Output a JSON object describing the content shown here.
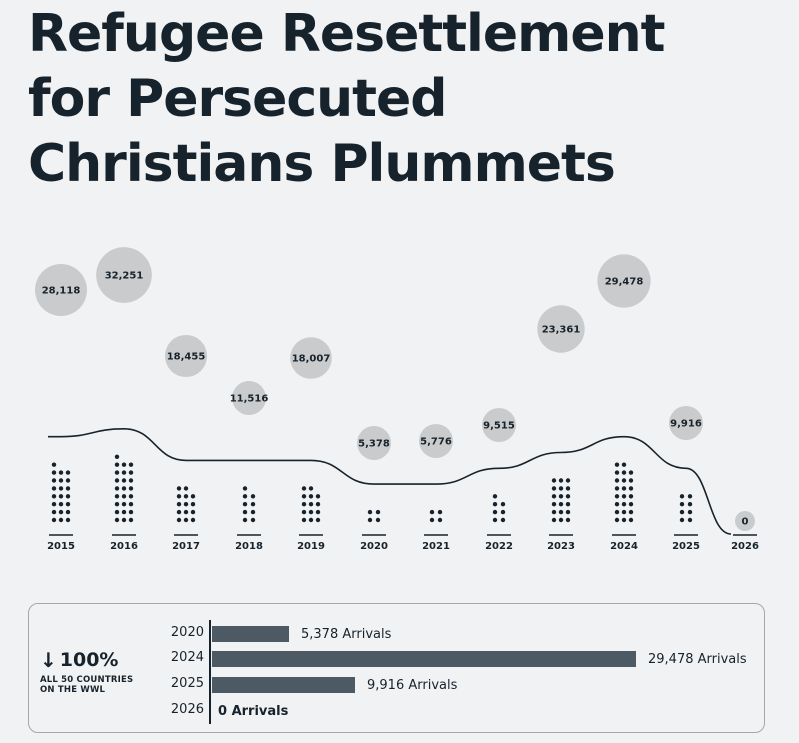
{
  "title": [
    "Refugee Resettlement",
    "for Persecuted",
    "Christians Plummets"
  ],
  "chart_data": [
    {
      "type": "bar",
      "categories": [
        "2015",
        "2016",
        "2017",
        "2018",
        "2019",
        "2020",
        "2021",
        "2022",
        "2023",
        "2024",
        "2025",
        "2026"
      ],
      "values": [
        28118,
        32251,
        18455,
        11516,
        18007,
        5378,
        5776,
        9515,
        23361,
        29478,
        9916,
        0
      ],
      "value_labels": [
        "28,118",
        "32,251",
        "18,455",
        "11,516",
        "18,007",
        "5,378",
        "5,776",
        "9,515",
        "23,361",
        "29,478",
        "9,916",
        "0"
      ],
      "colors": {
        "dots": "#17232c",
        "bubble": "#c9cbcd",
        "line": "#17232c"
      }
    },
    {
      "type": "bar",
      "orientation": "horizontal",
      "categories": [
        "2020",
        "2024",
        "2025",
        "2026"
      ],
      "values": [
        5378,
        29478,
        9916,
        0
      ],
      "value_labels": [
        "5,378 Arrivals",
        "29,478 Arrivals",
        "9,916 Arrivals",
        "0 Arrivals"
      ],
      "colors": {
        "bar": "#4e5a63"
      }
    }
  ],
  "stat": {
    "arrow": "↓",
    "value": "100%",
    "caption": "ALL 50 COUNTRIES\nON THE WWL"
  }
}
